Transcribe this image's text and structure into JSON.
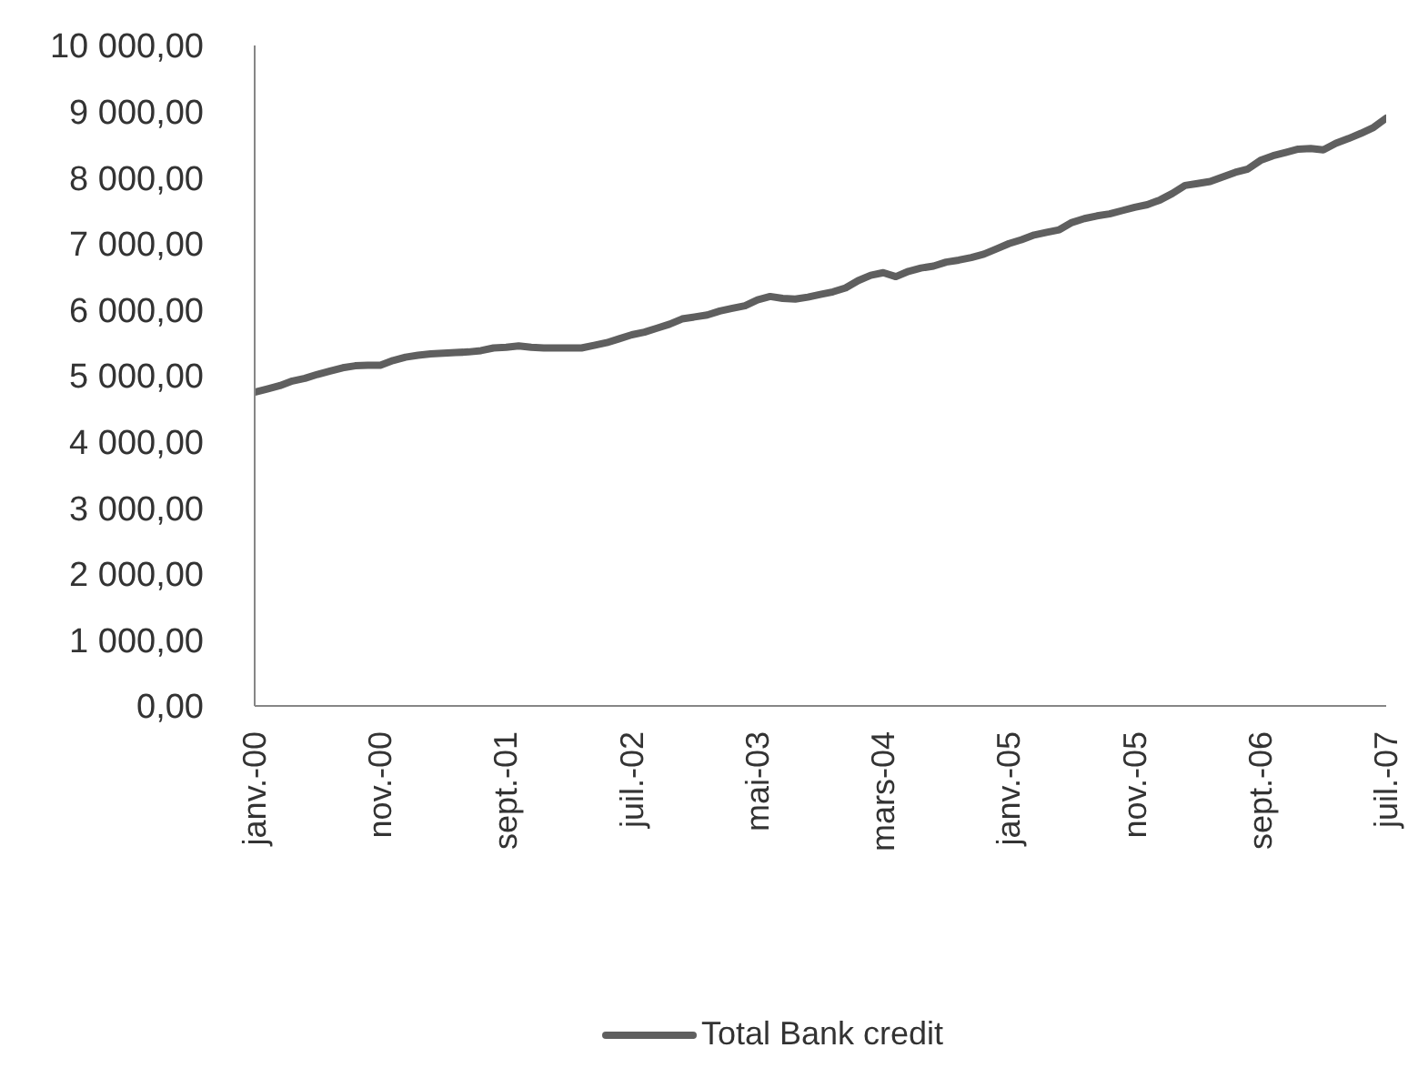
{
  "chart_data": {
    "type": "line",
    "categories": [
      "janv.-00",
      null,
      null,
      null,
      null,
      null,
      null,
      null,
      null,
      null,
      "nov.-00",
      null,
      null,
      null,
      null,
      null,
      null,
      null,
      null,
      null,
      "sept.-01",
      null,
      null,
      null,
      null,
      null,
      null,
      null,
      null,
      null,
      "juil.-02",
      null,
      null,
      null,
      null,
      null,
      null,
      null,
      null,
      null,
      "mai-03",
      null,
      null,
      null,
      null,
      null,
      null,
      null,
      null,
      null,
      "mars-04",
      null,
      null,
      null,
      null,
      null,
      null,
      null,
      null,
      null,
      "janv.-05",
      null,
      null,
      null,
      null,
      null,
      null,
      null,
      null,
      null,
      "nov.-05",
      null,
      null,
      null,
      null,
      null,
      null,
      null,
      null,
      null,
      "sept.-06",
      null,
      null,
      null,
      null,
      null,
      null,
      null,
      null,
      null,
      "juil.-07"
    ],
    "series": [
      {
        "name": "Total Bank credit",
        "color": "#5f5f5f",
        "values": [
          4750,
          4800,
          4850,
          4920,
          4960,
          5020,
          5070,
          5120,
          5150,
          5160,
          5160,
          5230,
          5280,
          5310,
          5330,
          5340,
          5350,
          5360,
          5380,
          5420,
          5430,
          5450,
          5430,
          5420,
          5420,
          5420,
          5420,
          5460,
          5500,
          5560,
          5620,
          5660,
          5720,
          5780,
          5860,
          5890,
          5920,
          5980,
          6020,
          6060,
          6150,
          6200,
          6170,
          6160,
          6190,
          6230,
          6270,
          6330,
          6440,
          6520,
          6560,
          6500,
          6580,
          6630,
          6660,
          6720,
          6750,
          6790,
          6840,
          6920,
          7000,
          7060,
          7130,
          7170,
          7210,
          7320,
          7380,
          7420,
          7450,
          7500,
          7550,
          7590,
          7660,
          7760,
          7880,
          7910,
          7940,
          8010,
          8080,
          8130,
          8260,
          8330,
          8380,
          8430,
          8440,
          8420,
          8520,
          8590,
          8670,
          8760,
          8900
        ]
      }
    ],
    "ylim": [
      0,
      10000
    ],
    "yticks": [
      {
        "value": 0,
        "label": "0,00"
      },
      {
        "value": 1000,
        "label": "1 000,00"
      },
      {
        "value": 2000,
        "label": "2 000,00"
      },
      {
        "value": 3000,
        "label": "3 000,00"
      },
      {
        "value": 4000,
        "label": "4 000,00"
      },
      {
        "value": 5000,
        "label": "5 000,00"
      },
      {
        "value": 6000,
        "label": "6 000,00"
      },
      {
        "value": 7000,
        "label": "7 000,00"
      },
      {
        "value": 8000,
        "label": "8 000,00"
      },
      {
        "value": 9000,
        "label": "9 000,00"
      },
      {
        "value": 10000,
        "label": "10 000,00"
      }
    ],
    "legend": "bottom",
    "marker": "none",
    "line_style": "solid"
  }
}
